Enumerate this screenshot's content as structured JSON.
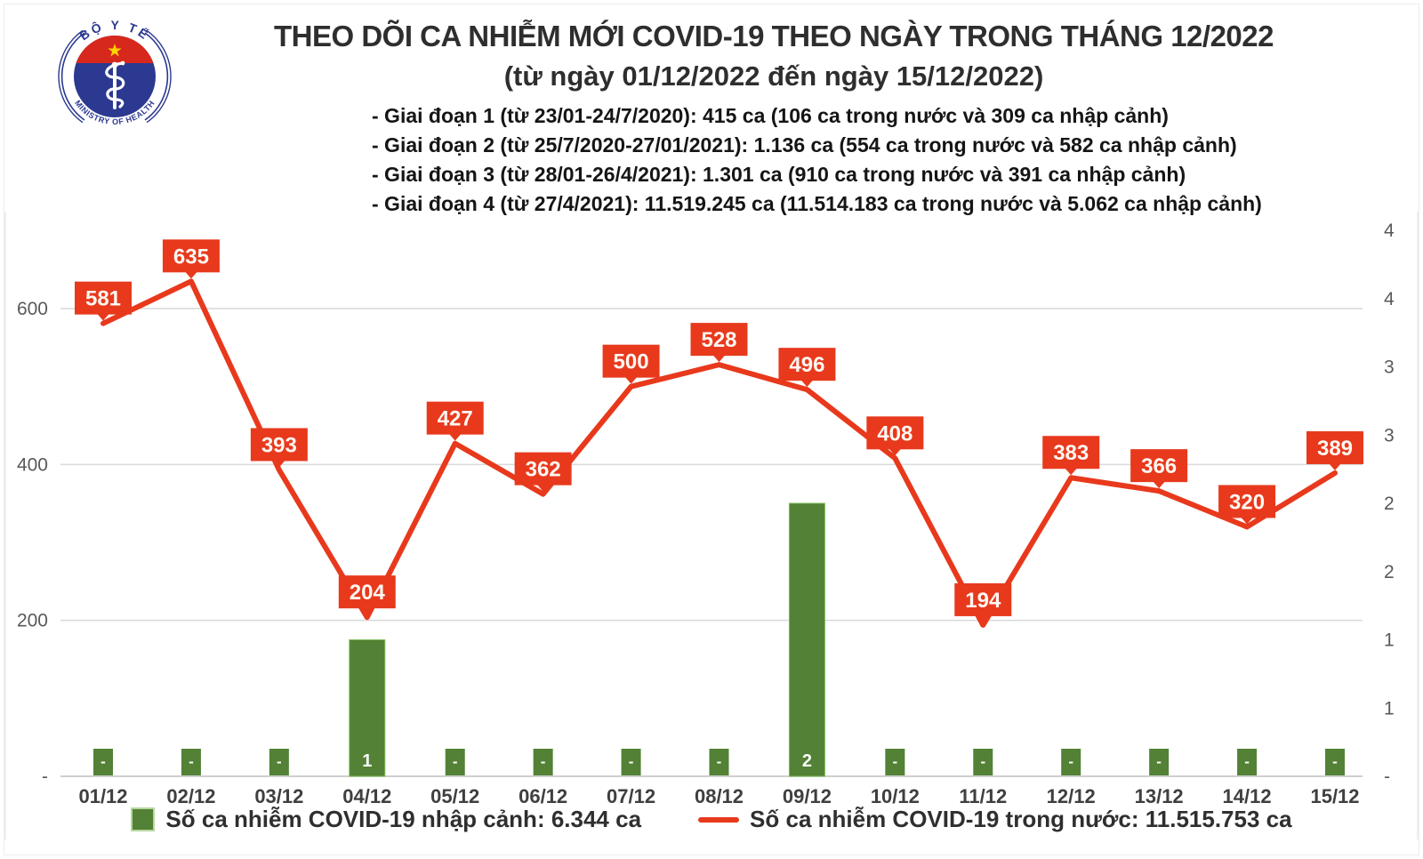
{
  "header": {
    "logo": {
      "top_text": "BỘ Y TẾ",
      "bottom_text": "MINISTRY OF HEALTH"
    },
    "title": "THEO DÕI CA NHIỄM MỚI COVID-19 THEO NGÀY TRONG THÁNG 12/2022",
    "subtitle": "(từ ngày 01/12/2022 đến ngày 15/12/2022)",
    "notes": [
      "- Giai đoạn 1 (từ 23/01-24/7/2020): 415 ca (106 ca trong nước và 309 ca nhập cảnh)",
      "- Giai đoạn 2 (từ 25/7/2020-27/01/2021): 1.136 ca (554 ca trong nước và 582 ca nhập cảnh)",
      "- Giai đoạn 3 (từ 28/01-26/4/2021): 1.301 ca (910 ca trong nước và 391 ca nhập cảnh)",
      "- Giai đoạn 4 (từ 27/4/2021): 11.519.245 ca (11.514.183 ca trong nước và 5.062 ca nhập cảnh)"
    ]
  },
  "chart_data": {
    "type": "line+bar",
    "categories": [
      "01/12",
      "02/12",
      "03/12",
      "04/12",
      "05/12",
      "06/12",
      "07/12",
      "08/12",
      "09/12",
      "10/12",
      "11/12",
      "12/12",
      "13/12",
      "14/12",
      "15/12"
    ],
    "series": [
      {
        "name": "Số ca nhiễm COVID-19 trong nước",
        "type": "line",
        "color": "#e8391d",
        "values": [
          581,
          635,
          393,
          204,
          427,
          362,
          500,
          528,
          496,
          408,
          194,
          383,
          366,
          320,
          389
        ]
      },
      {
        "name": "Số ca nhiễm COVID-19 nhập cảnh",
        "type": "bar",
        "color": "#538135",
        "zero_label": "-",
        "values": [
          0,
          0,
          0,
          1,
          0,
          0,
          0,
          0,
          2,
          0,
          0,
          0,
          0,
          0,
          0
        ]
      }
    ],
    "left_axis": {
      "max": 700,
      "ticks": [
        {
          "value": 0,
          "label": "-"
        },
        {
          "value": 200,
          "label": "200"
        },
        {
          "value": 400,
          "label": "400"
        },
        {
          "value": 600,
          "label": "600"
        }
      ]
    },
    "right_axis": {
      "max": 4,
      "ticks": [
        {
          "value": 0,
          "label": "-"
        },
        {
          "value": 0.5,
          "label": "1"
        },
        {
          "value": 1,
          "label": "1"
        },
        {
          "value": 1.5,
          "label": "2"
        },
        {
          "value": 2,
          "label": "2"
        },
        {
          "value": 2.5,
          "label": "3"
        },
        {
          "value": 3,
          "label": "3"
        },
        {
          "value": 3.5,
          "label": "4"
        },
        {
          "value": 4,
          "label": "4"
        }
      ]
    },
    "grid": true,
    "legend_position": "bottom",
    "legend": [
      {
        "swatch": "bar",
        "label": "Số ca nhiễm COVID-19 nhập cảnh: 6.344 ca"
      },
      {
        "swatch": "line",
        "label": "Số ca nhiễm COVID-19 trong nước: 11.515.753 ca"
      }
    ]
  },
  "colors": {
    "line": "#e8391d",
    "bar": "#538135",
    "bar_edge": "#7dbd57",
    "grid": "#d9d9d9",
    "axis_line": "#cfcfcf",
    "axis_text": "#595959",
    "x_label": "#3f3f3f",
    "label_text": "#fff8f2",
    "logo_blue": "#2b3990",
    "logo_red": "#d7281d",
    "logo_star": "#ffd400"
  }
}
